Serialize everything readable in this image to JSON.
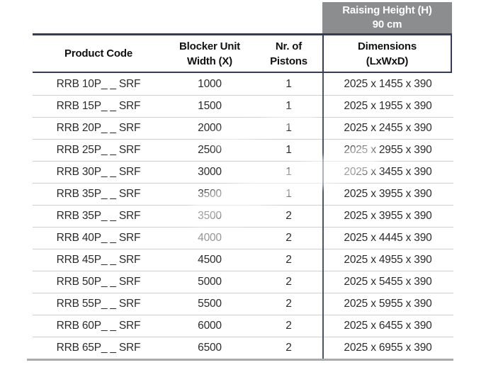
{
  "banner": {
    "line1": "Raising Height (H)",
    "line2": "90 cm"
  },
  "table": {
    "headers": [
      {
        "line1": "Product Code",
        "line2": ""
      },
      {
        "line1": "Blocker Unit",
        "line2": "Width (X)"
      },
      {
        "line1": "Nr. of",
        "line2": "Pistons"
      },
      {
        "line1": "Dimensions",
        "line2": "(LxWxD)"
      }
    ],
    "rows": [
      {
        "code": "RRB 10P_ _ SRF",
        "width": "1000",
        "pistons": "1",
        "dimensions": "2025 x 1455 x 390"
      },
      {
        "code": "RRB 15P_ _ SRF",
        "width": "1500",
        "pistons": "1",
        "dimensions": "2025 x 1955 x 390"
      },
      {
        "code": "RRB 20P_ _ SRF",
        "width": "2000",
        "pistons": "1",
        "dimensions": "2025 x 2455 x 390"
      },
      {
        "code": "RRB 25P_ _ SRF",
        "width": "2500",
        "pistons": "1",
        "dimensions": "2025 x 2955 x 390"
      },
      {
        "code": "RRB 30P_ _ SRF",
        "width": "3000",
        "pistons": "1",
        "dimensions": "2025 x 3455 x 390"
      },
      {
        "code": "RRB 35P_ _ SRF",
        "width": "3500",
        "pistons": "1",
        "dimensions": "2025 x 3955 x 390"
      },
      {
        "code": "RRB 35P_ _ SRF",
        "width": "3500",
        "pistons": "2",
        "dimensions": "2025 x 3955 x 390"
      },
      {
        "code": "RRB 40P_ _ SRF",
        "width": "4000",
        "pistons": "2",
        "dimensions": "2025 x 4445 x 390"
      },
      {
        "code": "RRB 45P_ _ SRF",
        "width": "4500",
        "pistons": "2",
        "dimensions": "2025 x 4955 x 390"
      },
      {
        "code": "RRB 50P_ _ SRF",
        "width": "5000",
        "pistons": "2",
        "dimensions": "2025 x 5455 x 390"
      },
      {
        "code": "RRB 55P_ _ SRF",
        "width": "5500",
        "pistons": "2",
        "dimensions": "2025 x 5955 x 390"
      },
      {
        "code": "RRB 60P_ _ SRF",
        "width": "6000",
        "pistons": "2",
        "dimensions": "2025 x 6455 x 390"
      },
      {
        "code": "RRB 65P_ _ SRF",
        "width": "6500",
        "pistons": "2",
        "dimensions": "2025 x 6955 x 390"
      }
    ]
  },
  "colors": {
    "accent_navy": "#363b5e",
    "column_divider_navy": "#4a5270",
    "banner_gray": "#8b8d8f",
    "row_separator_gray": "#cfcfcf",
    "bottom_rule_gray": "#ababab",
    "text_color": "#2b2b2b"
  }
}
